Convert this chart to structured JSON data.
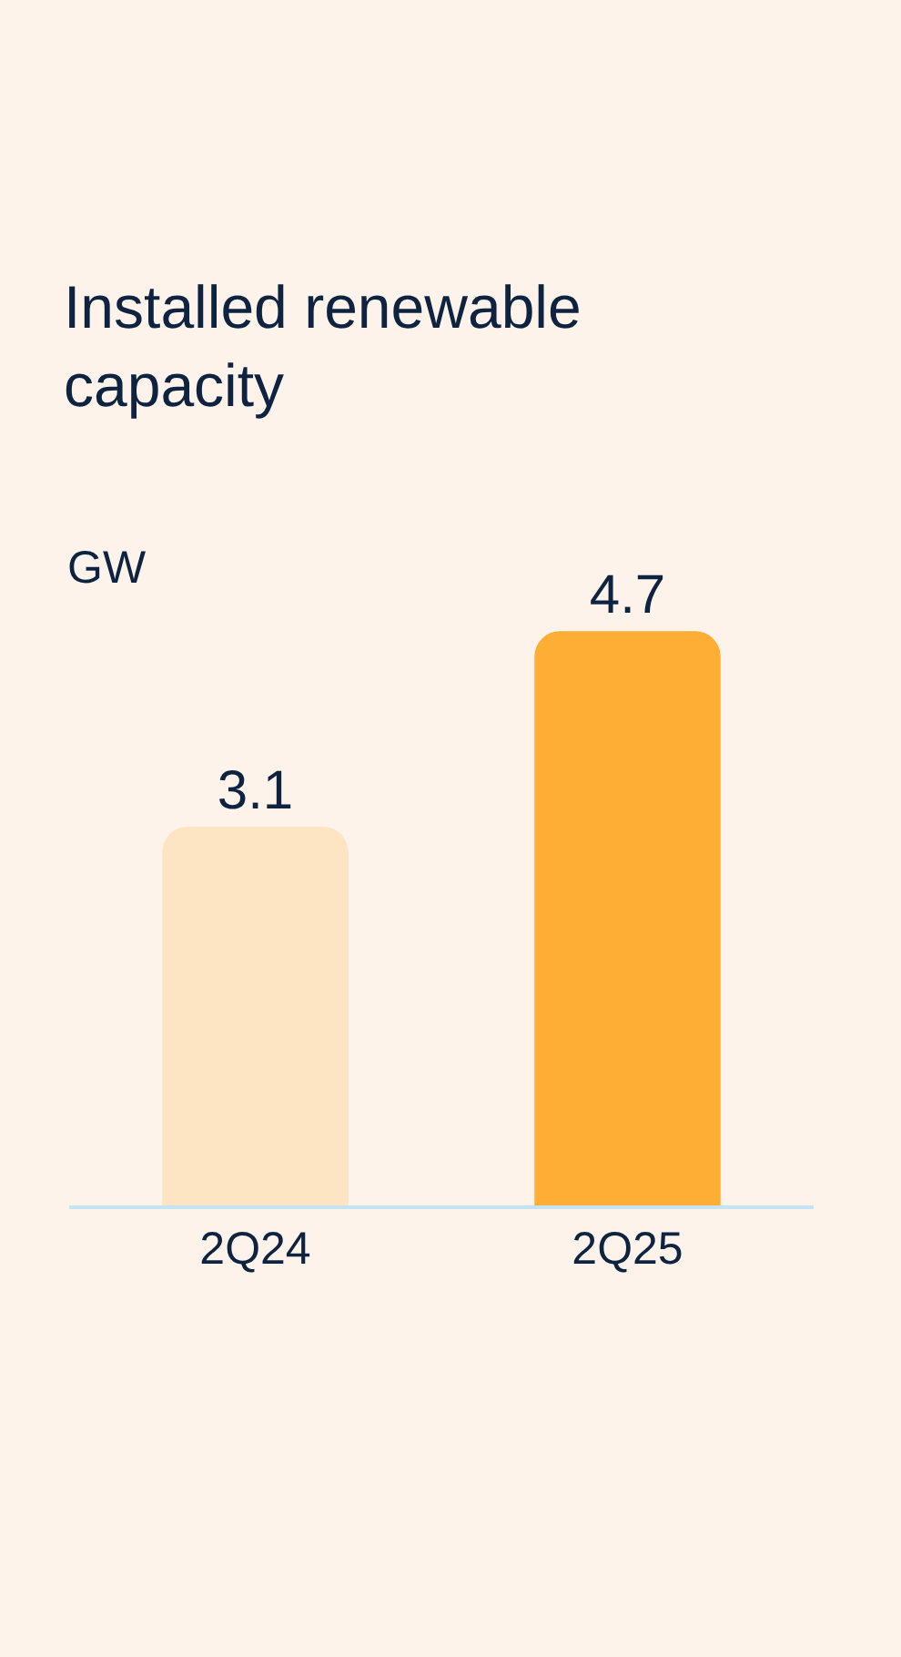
{
  "chart_data": {
    "type": "bar",
    "title": "Installed renewable capacity",
    "subtitle": "GW",
    "categories": [
      "2Q24",
      "2Q25"
    ],
    "values": [
      3.1,
      4.7
    ],
    "colors": [
      "#fde4c3",
      "#ffae35"
    ],
    "data_labels": true,
    "grid": false,
    "legend": false
  }
}
